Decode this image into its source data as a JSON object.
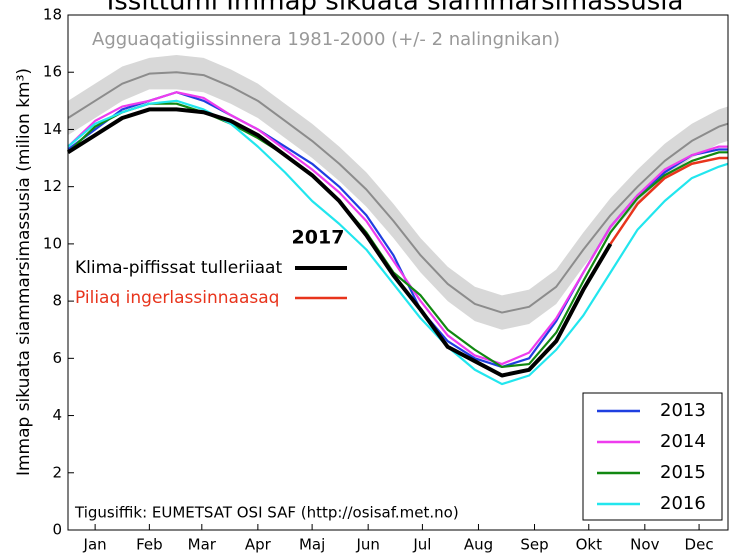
{
  "chart_data": {
    "type": "line",
    "title": "Issittumi Immap sikuata siammarsimassusia",
    "ylabel": "Immap sikuata siammarsimassusia (milion km³)",
    "band_label": "Agguaqatigiissinnera 1981-2000 (+/- 2 nalingnikan)",
    "current_year": "2017",
    "source": "Tigusiffik: EUMETSAT OSI SAF (http://osisaf.met.no)",
    "x": [
      0,
      15,
      30,
      45,
      60,
      75,
      90,
      105,
      120,
      135,
      150,
      165,
      180,
      195,
      210,
      225,
      240,
      255,
      270,
      285,
      300,
      315,
      330,
      345,
      360,
      365
    ],
    "xlim": [
      0,
      365
    ],
    "xticks": [
      {
        "value": 15,
        "label": "Jan"
      },
      {
        "value": 45,
        "label": "Feb"
      },
      {
        "value": 74,
        "label": "Mar"
      },
      {
        "value": 105,
        "label": "Apr"
      },
      {
        "value": 135,
        "label": "Maj"
      },
      {
        "value": 166,
        "label": "Jun"
      },
      {
        "value": 196,
        "label": "Jul"
      },
      {
        "value": 227,
        "label": "Aug"
      },
      {
        "value": 258,
        "label": "Sep"
      },
      {
        "value": 288,
        "label": "Okt"
      },
      {
        "value": 319,
        "label": "Nov"
      },
      {
        "value": 349,
        "label": "Dec"
      }
    ],
    "ylim": [
      0,
      18
    ],
    "yticks": [
      0,
      2,
      4,
      6,
      8,
      10,
      12,
      14,
      16,
      18
    ],
    "band": {
      "color": "#d8d8d8",
      "upper": [
        15.0,
        15.6,
        16.2,
        16.5,
        16.6,
        16.5,
        16.1,
        15.6,
        14.9,
        14.2,
        13.4,
        12.5,
        11.4,
        10.2,
        9.2,
        8.5,
        8.2,
        8.4,
        9.1,
        10.4,
        11.6,
        12.6,
        13.5,
        14.2,
        14.7,
        14.8
      ],
      "lower": [
        13.8,
        14.4,
        15.0,
        15.4,
        15.4,
        15.3,
        14.9,
        14.4,
        13.7,
        13.0,
        12.2,
        11.3,
        10.2,
        9.0,
        8.0,
        7.3,
        7.0,
        7.2,
        7.9,
        9.2,
        10.4,
        11.4,
        12.3,
        13.0,
        13.5,
        13.6
      ]
    },
    "series": [
      {
        "name": "Agguaqatigiissinnera",
        "color": "#8c8c8c",
        "width": 2,
        "values": [
          14.4,
          15.0,
          15.6,
          15.95,
          16.0,
          15.9,
          15.5,
          15.0,
          14.3,
          13.6,
          12.8,
          11.9,
          10.8,
          9.6,
          8.6,
          7.9,
          7.6,
          7.8,
          8.5,
          9.8,
          11.0,
          12.0,
          12.9,
          13.6,
          14.1,
          14.2
        ]
      },
      {
        "name": "2013",
        "color": "#1f3fe0",
        "width": 2.2,
        "legend": true,
        "values": [
          13.3,
          14.0,
          14.7,
          15.0,
          15.3,
          15.0,
          14.5,
          14.0,
          13.4,
          12.8,
          12.0,
          11.0,
          9.6,
          7.7,
          6.6,
          6.0,
          5.7,
          6.0,
          7.3,
          9.0,
          10.6,
          11.7,
          12.5,
          13.1,
          13.3,
          13.3
        ]
      },
      {
        "name": "2014",
        "color": "#ee3cee",
        "width": 2.2,
        "legend": true,
        "values": [
          13.4,
          14.3,
          14.8,
          15.0,
          15.3,
          15.1,
          14.5,
          14.0,
          13.3,
          12.6,
          11.8,
          10.8,
          9.4,
          8.0,
          6.8,
          6.1,
          5.8,
          6.2,
          7.4,
          9.0,
          10.6,
          11.7,
          12.6,
          13.1,
          13.4,
          13.4
        ]
      },
      {
        "name": "2015",
        "color": "#118811",
        "width": 2.2,
        "legend": true,
        "values": [
          13.2,
          14.1,
          14.6,
          14.9,
          14.9,
          14.6,
          14.2,
          13.7,
          13.1,
          12.4,
          11.5,
          10.4,
          9.0,
          8.2,
          7.0,
          6.3,
          5.7,
          5.8,
          6.9,
          8.7,
          10.4,
          11.6,
          12.4,
          12.9,
          13.2,
          13.2
        ]
      },
      {
        "name": "2016",
        "color": "#22e6ee",
        "width": 2.2,
        "legend": true,
        "values": [
          13.4,
          14.2,
          14.6,
          14.9,
          15.0,
          14.7,
          14.2,
          13.4,
          12.5,
          11.5,
          10.7,
          9.8,
          8.6,
          7.4,
          6.4,
          5.6,
          5.1,
          5.4,
          6.3,
          7.5,
          9.0,
          10.5,
          11.5,
          12.3,
          12.7,
          12.8
        ]
      },
      {
        "name": "Klima-piffissat tulleriiaat",
        "color": "#000000",
        "width": 4,
        "values": [
          13.2,
          13.8,
          14.4,
          14.7,
          14.7,
          14.6,
          14.3,
          13.8,
          13.1,
          12.4,
          11.5,
          10.3,
          8.9,
          7.7,
          6.4,
          5.9,
          5.4,
          5.6,
          6.6,
          8.4,
          10.0,
          null,
          null,
          null,
          null,
          null
        ]
      },
      {
        "name": "Piliaq ingerlassinnaasaq",
        "color": "#e8341c",
        "width": 2.5,
        "values": [
          null,
          null,
          null,
          null,
          null,
          null,
          null,
          null,
          null,
          null,
          null,
          null,
          null,
          null,
          null,
          null,
          null,
          null,
          null,
          null,
          10.0,
          11.4,
          12.3,
          12.8,
          13.0,
          13.0
        ]
      }
    ]
  }
}
